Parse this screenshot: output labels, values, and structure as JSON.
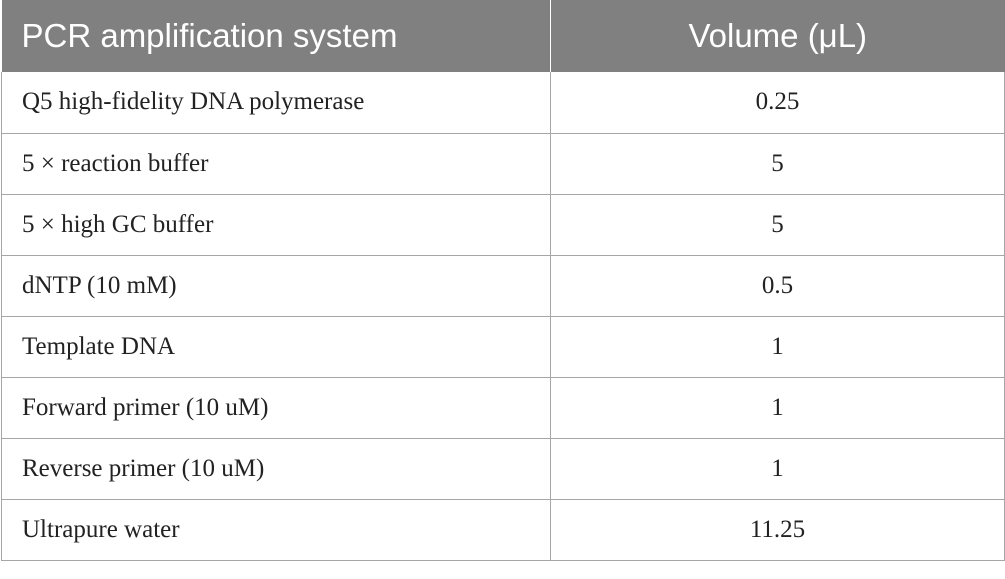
{
  "table": {
    "headers": [
      "PCR amplification system",
      "Volume (μL)"
    ],
    "rows": [
      {
        "component": "Q5 high-fidelity DNA polymerase",
        "volume": "0.25"
      },
      {
        "component": "5 × reaction buffer",
        "volume": "5"
      },
      {
        "component": "5 × high GC buffer",
        "volume": "5"
      },
      {
        "component": "dNTP (10 mM)",
        "volume": "0.5"
      },
      {
        "component": "Template DNA",
        "volume": "1"
      },
      {
        "component": "Forward primer (10 uM)",
        "volume": "1"
      },
      {
        "component": "Reverse primer (10 uM)",
        "volume": "1"
      },
      {
        "component": "Ultrapure water",
        "volume": "11.25"
      }
    ],
    "colors": {
      "header_bg": "#808080",
      "header_text": "#ffffff",
      "grid": "#a6a6a6",
      "body_text": "#222222"
    }
  }
}
